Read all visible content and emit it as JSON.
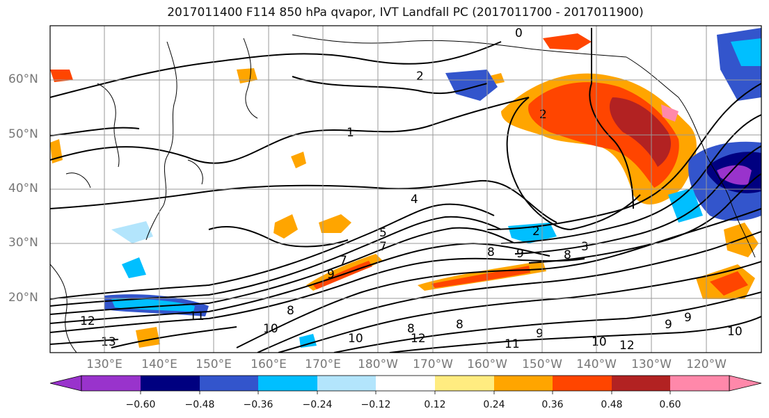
{
  "title": "2017011400 F114 850 hPa qvapor, IVT Landfall PC (2017011700 - 2017011900)",
  "lat_labels": [
    "60°N",
    "50°N",
    "40°N",
    "30°N",
    "20°N"
  ],
  "lon_labels": [
    "130°E",
    "140°E",
    "150°E",
    "160°E",
    "170°E",
    "180°W",
    "170°W",
    "160°W",
    "150°W",
    "140°W",
    "130°W",
    "120°W"
  ],
  "colorbar": {
    "colors": [
      "#9933cc",
      "#000080",
      "#3355cc",
      "#00bfff",
      "#b3e5fc",
      "#ffffff",
      "#ffec80",
      "#ffa500",
      "#ff4500",
      "#b22222",
      "#ff88aa"
    ],
    "tick_labels": [
      "−0.60",
      "−0.48",
      "−0.36",
      "−0.24",
      "−0.12",
      "0.12",
      "0.24",
      "0.36",
      "0.48",
      "0.60"
    ]
  },
  "contour_labels": [
    "0",
    "1",
    "2",
    "2",
    "4",
    "5",
    "7",
    "8",
    "9",
    "9",
    "8",
    "11",
    "12",
    "13",
    "10",
    "10",
    "12",
    "8",
    "8",
    "9",
    "10",
    "11",
    "12",
    "10",
    "9",
    "9",
    "8",
    "7",
    "3",
    "2"
  ]
}
